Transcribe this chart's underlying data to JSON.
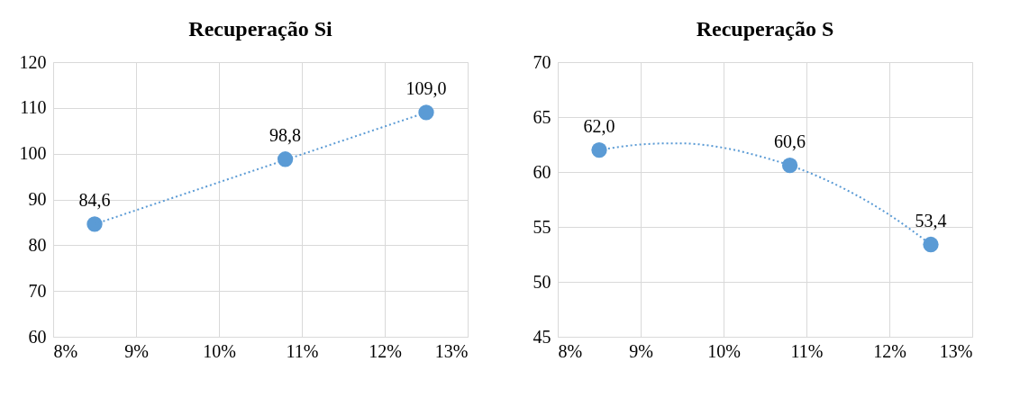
{
  "chart_data": [
    {
      "type": "scatter",
      "title": "Recuperação Si",
      "xlim": [
        8,
        13
      ],
      "xticks": [
        {
          "value": 8,
          "label": "8%"
        },
        {
          "value": 9,
          "label": "9%"
        },
        {
          "value": 10,
          "label": "10%"
        },
        {
          "value": 11,
          "label": "11%"
        },
        {
          "value": 12,
          "label": "12%"
        },
        {
          "value": 13,
          "label": "13%"
        }
      ],
      "ylim": [
        60,
        120
      ],
      "yticks": [
        60,
        70,
        80,
        90,
        100,
        110,
        120
      ],
      "grid": true,
      "series": [
        {
          "color": "#5b9bd5",
          "marker": "circle",
          "x": [
            8.5,
            10.8,
            12.5
          ],
          "values": [
            84.6,
            98.8,
            109.0
          ],
          "value_labels": [
            "84,6",
            "98,8",
            "109,0"
          ]
        },
        {
          "type": "line",
          "color": "#5b9bd5",
          "marker": "none",
          "line_style": "dotted",
          "x": [
            8.5,
            12.5
          ],
          "values": [
            84.6,
            109.0
          ]
        }
      ]
    },
    {
      "type": "scatter",
      "title": "Recuperação S",
      "xlim": [
        8,
        13
      ],
      "xticks": [
        {
          "value": 8,
          "label": "8%"
        },
        {
          "value": 9,
          "label": "9%"
        },
        {
          "value": 10,
          "label": "10%"
        },
        {
          "value": 11,
          "label": "11%"
        },
        {
          "value": 12,
          "label": "12%"
        },
        {
          "value": 13,
          "label": "13%"
        }
      ],
      "ylim": [
        45,
        70
      ],
      "yticks": [
        45,
        50,
        55,
        60,
        65,
        70
      ],
      "grid": true,
      "series": [
        {
          "color": "#5b9bd5",
          "marker": "circle",
          "x": [
            8.5,
            10.8,
            12.5
          ],
          "values": [
            62.0,
            60.6,
            53.4
          ],
          "value_labels": [
            "62,0",
            "60,6",
            "53,4"
          ]
        },
        {
          "type": "line",
          "color": "#5b9bd5",
          "marker": "none",
          "line_style": "dotted",
          "x": [
            8.5,
            9.0,
            9.3,
            9.5,
            10.0,
            10.5,
            10.8,
            11.5,
            12.0,
            12.5
          ],
          "values": [
            62.0,
            62.5,
            62.6,
            62.6,
            62.2,
            61.3,
            60.6,
            58.3,
            56.1,
            53.4
          ]
        }
      ]
    }
  ]
}
